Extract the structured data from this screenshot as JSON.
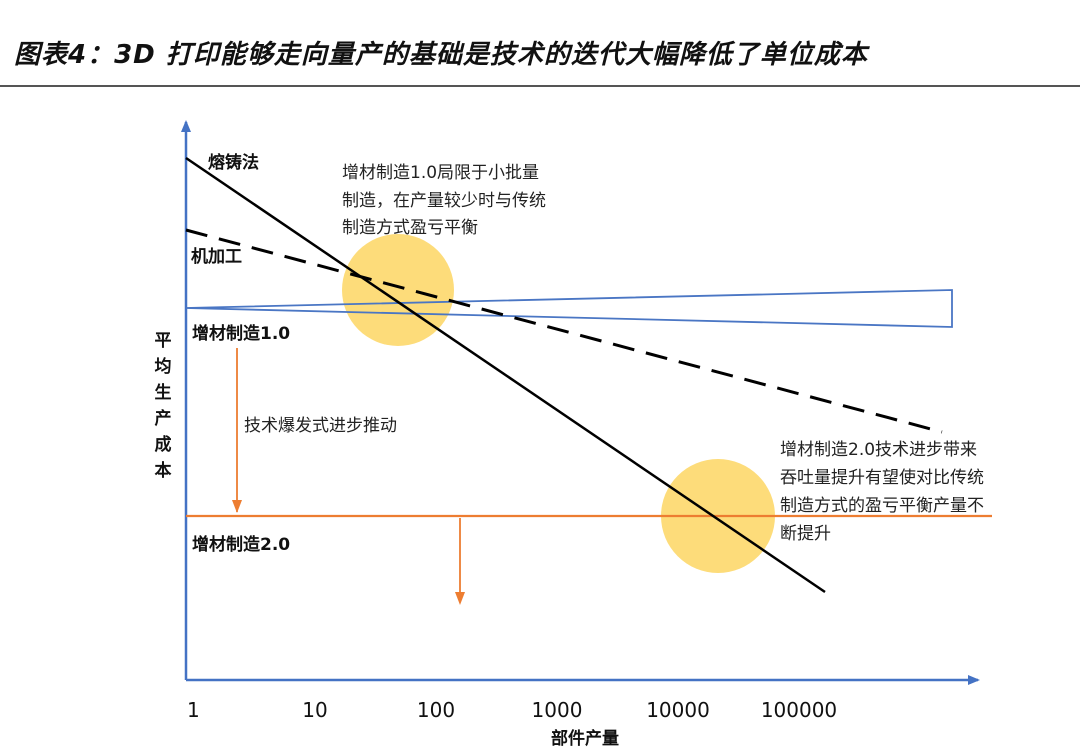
{
  "title": "图表4：3D 打印能够走向量产的基础是技术的迭代大幅降低了单位成本",
  "chart_data": {
    "type": "line",
    "x_scale": "log",
    "x_ticks": [
      "1",
      "10",
      "100",
      "1000",
      "10000",
      "100000"
    ],
    "xlabel": "部件产量",
    "ylabel": "平均生产成本",
    "series": [
      {
        "name": "熔铸法",
        "style": "solid",
        "color": "#000000"
      },
      {
        "name": "机加工",
        "style": "dashed",
        "color": "#000000"
      },
      {
        "name": "增材制造1.0",
        "style": "wedge",
        "color": "#4a76c4"
      },
      {
        "name": "增材制造2.0",
        "style": "solid",
        "color": "#ed7d31"
      }
    ],
    "annotations": {
      "am1_note": [
        "增材制造1.0局限于小批量",
        "制造，在产量较少时与传统",
        "制造方式盈亏平衡"
      ],
      "tech_push": "技术爆发式进步推动",
      "am2_note": [
        "增材制造2.0技术进步带来",
        "吞吐量提升有望使对比传统",
        "制造方式的盈亏平衡产量不",
        "断提升"
      ]
    },
    "colors": {
      "axis": "#4472c4",
      "highlight": "#fdd663",
      "am2": "#ed7d31"
    }
  }
}
